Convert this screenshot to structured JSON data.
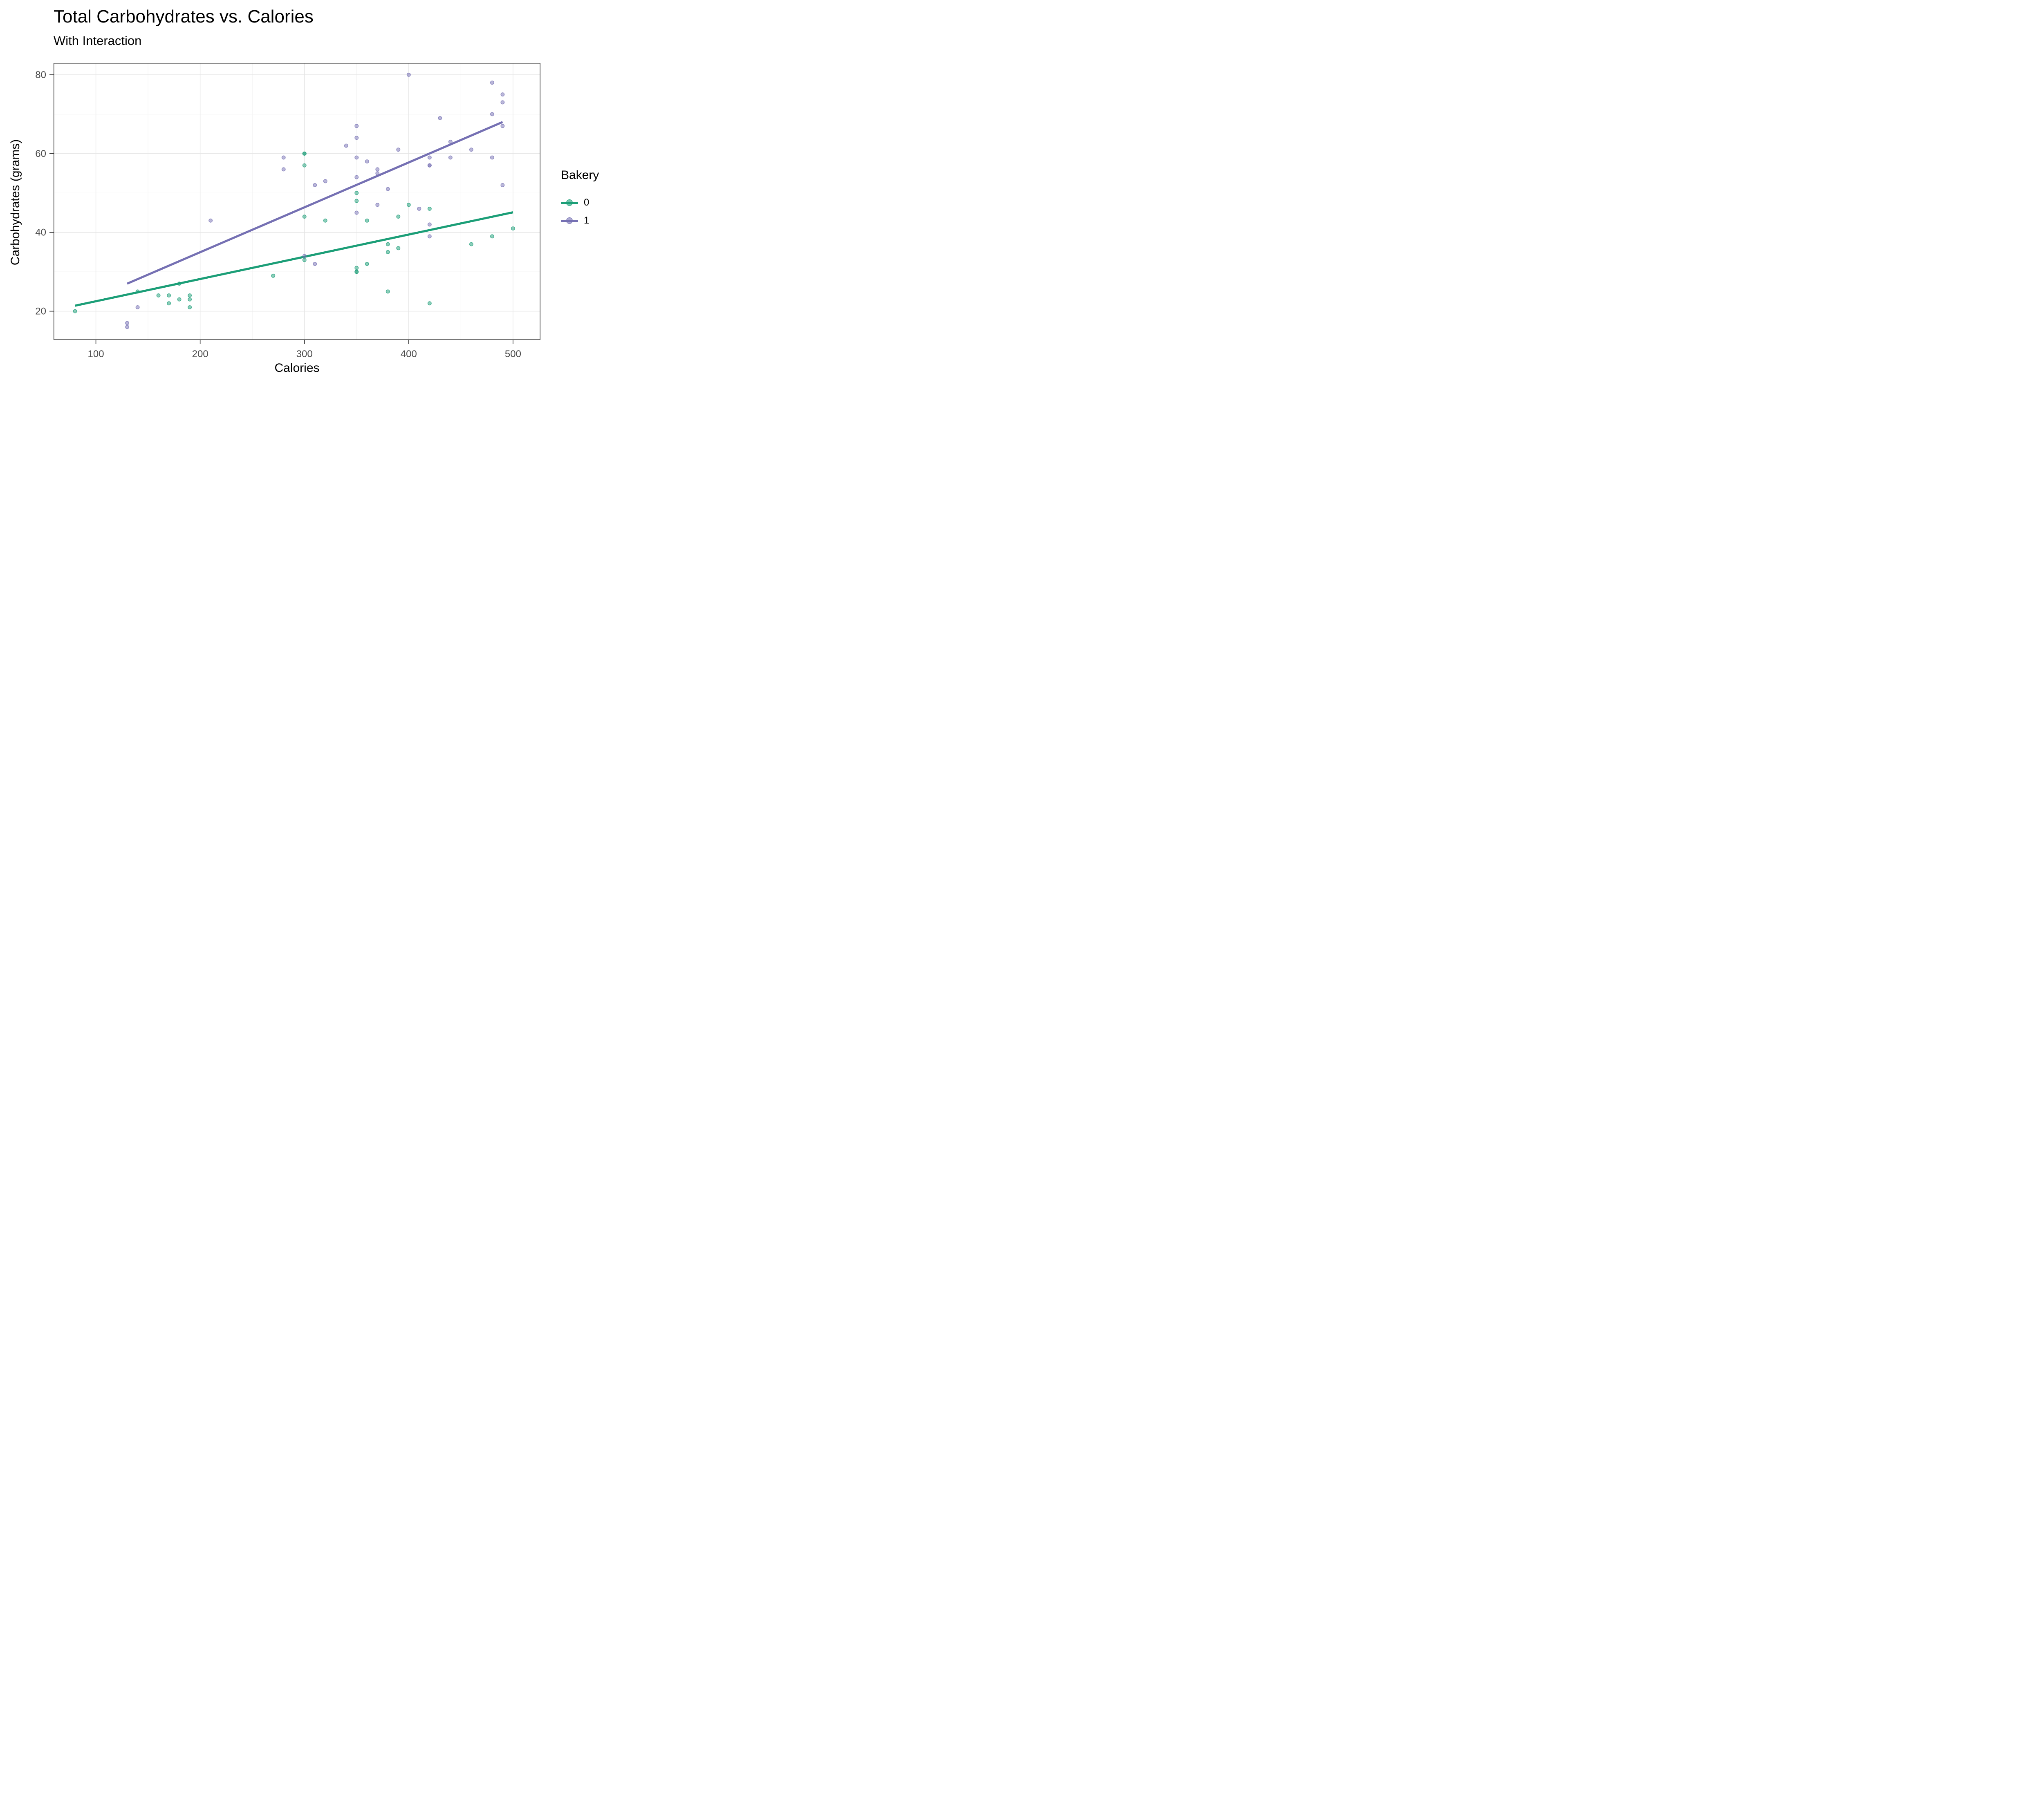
{
  "title": "Total Carbohydrates vs. Calories",
  "subtitle": "With Interaction",
  "legend": {
    "title": "Bakery",
    "items": [
      {
        "label": "0",
        "color": "#1B9E77"
      },
      {
        "label": "1",
        "color": "#7570B3"
      }
    ]
  },
  "chart_data": {
    "type": "scatter",
    "title": "Total Carbohydrates vs. Calories",
    "subtitle": "With Interaction",
    "xlabel": "Calories",
    "ylabel": "Carbohydrates (grams)",
    "x_domain": [
      59.4,
      526.3
    ],
    "y_domain": [
      12.7,
      83.0
    ],
    "x_ticks": [
      100,
      200,
      300,
      400,
      500
    ],
    "x_minor_ticks": [
      150,
      250,
      350,
      450
    ],
    "y_ticks": [
      20,
      40,
      60,
      80
    ],
    "y_minor_ticks": [
      30,
      50,
      70
    ],
    "grid": true,
    "legend_position": "right",
    "point_alpha": 0.5,
    "series": [
      {
        "name": "0",
        "color": "#1B9E77",
        "points": [
          [
            80,
            20
          ],
          [
            140,
            25
          ],
          [
            160,
            24
          ],
          [
            170,
            24
          ],
          [
            170,
            22
          ],
          [
            180,
            27
          ],
          [
            180,
            23
          ],
          [
            190,
            24
          ],
          [
            190,
            23
          ],
          [
            190,
            21
          ],
          [
            270,
            29
          ],
          [
            300,
            60
          ],
          [
            300,
            60
          ],
          [
            300,
            57
          ],
          [
            300,
            44
          ],
          [
            300,
            33
          ],
          [
            320,
            43
          ],
          [
            350,
            50
          ],
          [
            350,
            48
          ],
          [
            350,
            31
          ],
          [
            350,
            30
          ],
          [
            350,
            30
          ],
          [
            360,
            43
          ],
          [
            360,
            32
          ],
          [
            380,
            37
          ],
          [
            380,
            35
          ],
          [
            380,
            25
          ],
          [
            390,
            44
          ],
          [
            390,
            36
          ],
          [
            400,
            47
          ],
          [
            420,
            46
          ],
          [
            420,
            22
          ],
          [
            460,
            37
          ],
          [
            480,
            39
          ],
          [
            500,
            41
          ]
        ]
      },
      {
        "name": "1",
        "color": "#7570B3",
        "points": [
          [
            130,
            17
          ],
          [
            130,
            16
          ],
          [
            140,
            21
          ],
          [
            210,
            43
          ],
          [
            280,
            59
          ],
          [
            280,
            56
          ],
          [
            300,
            34
          ],
          [
            310,
            52
          ],
          [
            310,
            32
          ],
          [
            320,
            53
          ],
          [
            340,
            62
          ],
          [
            350,
            67
          ],
          [
            350,
            64
          ],
          [
            350,
            59
          ],
          [
            350,
            54
          ],
          [
            350,
            45
          ],
          [
            360,
            58
          ],
          [
            370,
            56
          ],
          [
            370,
            55
          ],
          [
            370,
            47
          ],
          [
            380,
            51
          ],
          [
            390,
            61
          ],
          [
            400,
            80
          ],
          [
            410,
            46
          ],
          [
            420,
            59
          ],
          [
            420,
            57
          ],
          [
            420,
            57
          ],
          [
            420,
            42
          ],
          [
            420,
            39
          ],
          [
            430,
            69
          ],
          [
            440,
            63
          ],
          [
            440,
            59
          ],
          [
            460,
            61
          ],
          [
            480,
            78
          ],
          [
            480,
            70
          ],
          [
            480,
            59
          ],
          [
            490,
            75
          ],
          [
            490,
            73
          ],
          [
            490,
            67
          ],
          [
            490,
            52
          ]
        ]
      }
    ],
    "trend_lines": [
      {
        "series": "0",
        "color": "#1B9E77",
        "from": [
          80,
          21.4
        ],
        "to": [
          500,
          45.1
        ]
      },
      {
        "series": "1",
        "color": "#7570B3",
        "from": [
          130,
          27.0
        ],
        "to": [
          490,
          68.0
        ]
      }
    ]
  },
  "style": {
    "major_grid": "#e5e5e5",
    "minor_grid": "#f1f1f1",
    "panel_border": "#333333",
    "tick_color": "#333333",
    "tick_label_color": "#4d4d4d"
  }
}
